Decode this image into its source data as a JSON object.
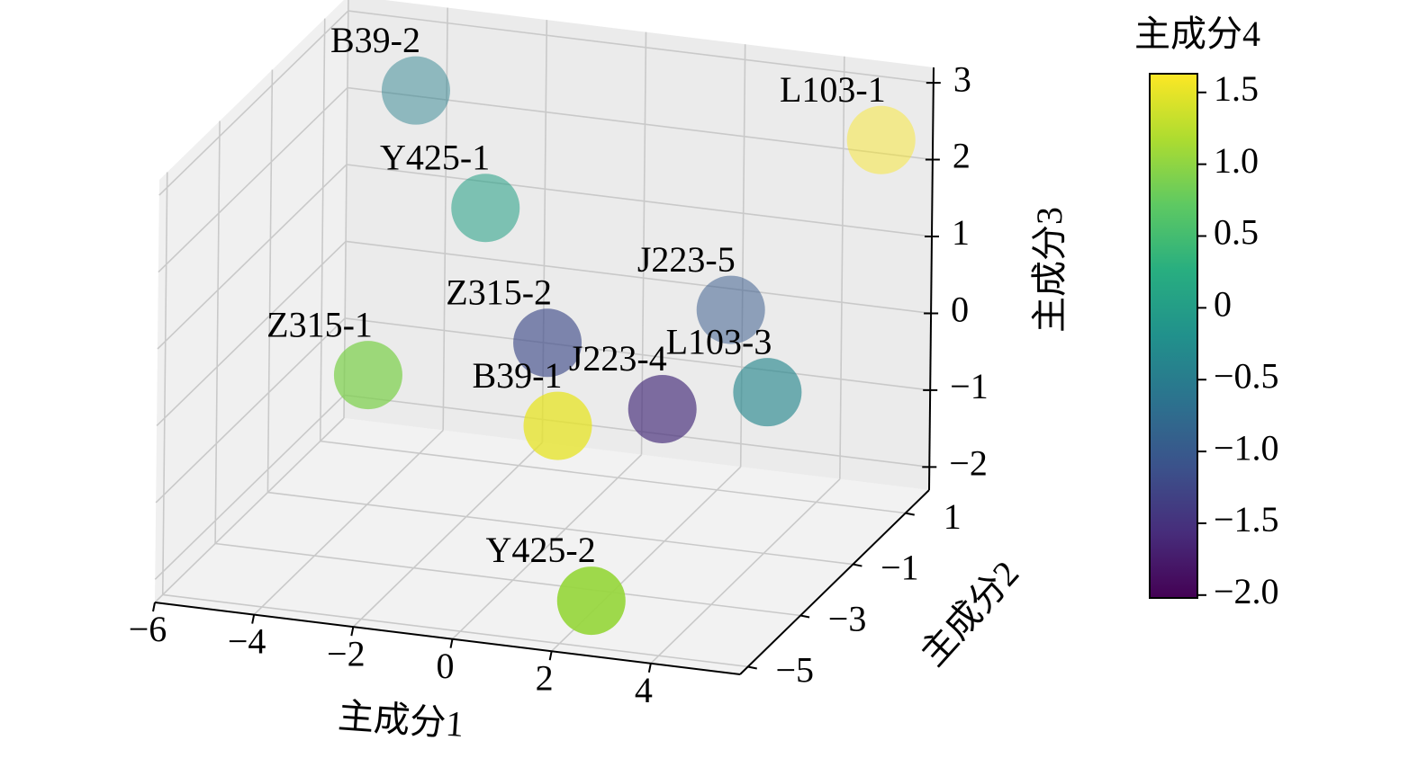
{
  "chart_data": {
    "type": "scatter3d",
    "labels": [
      "B39-2",
      "L103-1",
      "Y425-1",
      "J223-5",
      "Z315-2",
      "Z315-1",
      "L103-3",
      "J223-4",
      "B39-1",
      "Y425-2"
    ],
    "x": [
      -4.15,
      5.23,
      -2.2,
      2.5,
      -0.4,
      -3.48,
      4.04,
      2.19,
      0.61,
      2.37
    ],
    "y": [
      1.0,
      1.0,
      0.0,
      0.5,
      -1.0,
      -2.0,
      -1.0,
      -1.5,
      -2.5,
      -4.5
    ],
    "z": [
      2.41,
      2.51,
      1.37,
      0.25,
      0.09,
      -0.24,
      -0.2,
      -0.4,
      -0.41,
      -1.88
    ],
    "c": [
      -0.45,
      1.6,
      0.05,
      -1.0,
      -1.2,
      0.9,
      -0.35,
      -1.55,
      1.5,
      1.05
    ],
    "xlabel": "主成分1",
    "ylabel": "主成分2",
    "zlabel": "主成分3",
    "colorbar_label": "主成分4",
    "colormap": "viridis",
    "grid": true,
    "xlim": [
      -6,
      5.8
    ],
    "ylim": [
      -5.3,
      1.9
    ],
    "zlim": [
      -2.3,
      3.2
    ],
    "clim": [
      -2.02,
      1.63
    ],
    "xticks": [
      {
        "value": -6,
        "label": "−6"
      },
      {
        "value": -4,
        "label": "−4"
      },
      {
        "value": -2,
        "label": "−2"
      },
      0,
      2,
      4
    ],
    "yticks": [
      1,
      {
        "value": -1,
        "label": "−1"
      },
      {
        "value": -3,
        "label": "−3"
      },
      {
        "value": -5,
        "label": "−5"
      }
    ],
    "zticks": [
      {
        "value": -2,
        "label": "−2"
      },
      {
        "value": -1,
        "label": "−1"
      },
      0,
      1,
      2,
      3
    ],
    "cticks": [
      1.5,
      {
        "value": 1.0,
        "label": "1.0"
      },
      0.5,
      0,
      {
        "value": -0.5,
        "label": "−0.5"
      },
      {
        "value": -1.0,
        "label": "−1.0"
      },
      {
        "value": -1.5,
        "label": "−1.5"
      },
      {
        "value": -2.0,
        "label": "−2.0"
      }
    ]
  }
}
